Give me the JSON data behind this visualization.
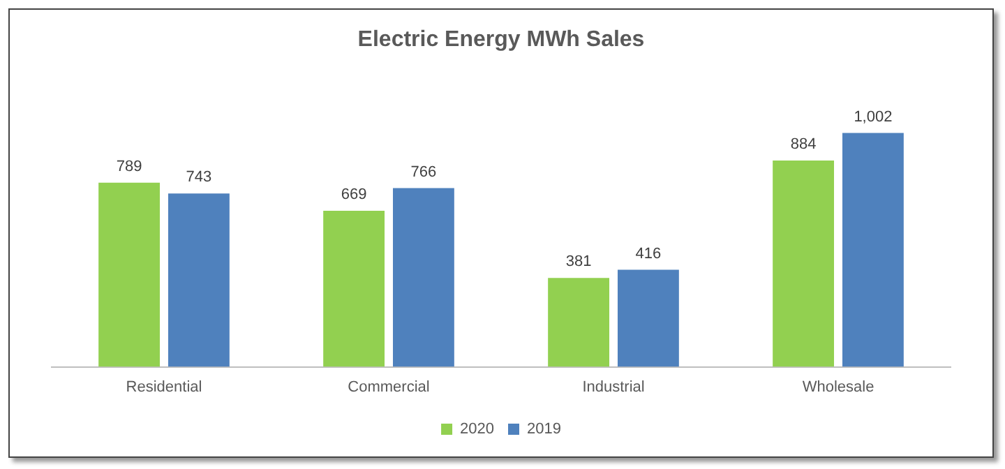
{
  "chart_data": {
    "type": "bar",
    "title": "Electric Energy MWh Sales",
    "categories": [
      "Residential",
      "Commercial",
      "Industrial",
      "Wholesale"
    ],
    "series": [
      {
        "name": "2020",
        "color": "#92d050",
        "values": [
          789,
          669,
          381,
          884
        ],
        "value_labels": [
          "789",
          "669",
          "381",
          "884"
        ]
      },
      {
        "name": "2019",
        "color": "#4f81bd",
        "values": [
          743,
          766,
          416,
          1002
        ],
        "value_labels": [
          "743",
          "766",
          "416",
          "1,002"
        ]
      }
    ],
    "legend": "bottom",
    "grid": false
  }
}
